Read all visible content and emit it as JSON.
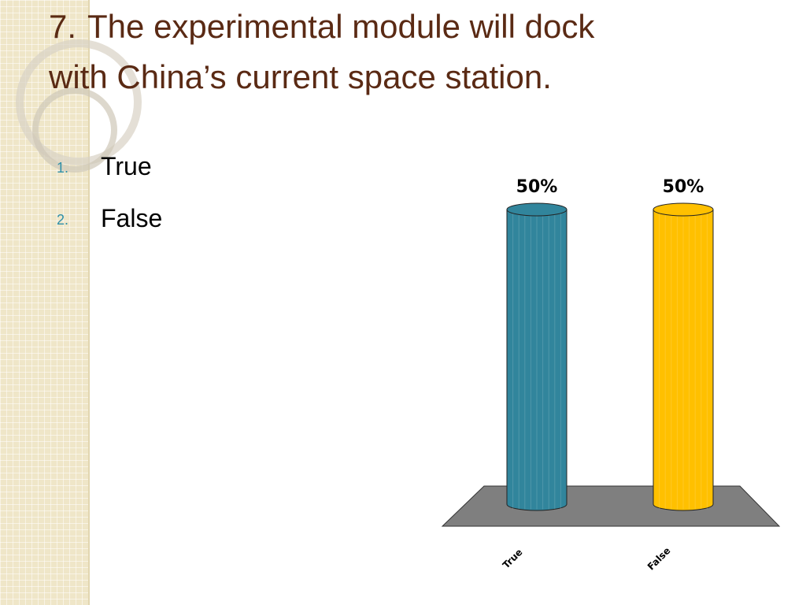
{
  "slide": {
    "title": {
      "number": "7.",
      "text": "The experimental module will dock with China’s current space station."
    },
    "items": [
      {
        "number": "1.",
        "text": "True"
      },
      {
        "number": "2.",
        "text": "False"
      }
    ]
  },
  "chart_data": {
    "type": "bar",
    "categories": [
      "True",
      "False"
    ],
    "values": [
      50,
      50
    ],
    "value_labels": [
      "50%",
      "50%"
    ],
    "colors": [
      "#31859c",
      "#ffc000"
    ]
  }
}
